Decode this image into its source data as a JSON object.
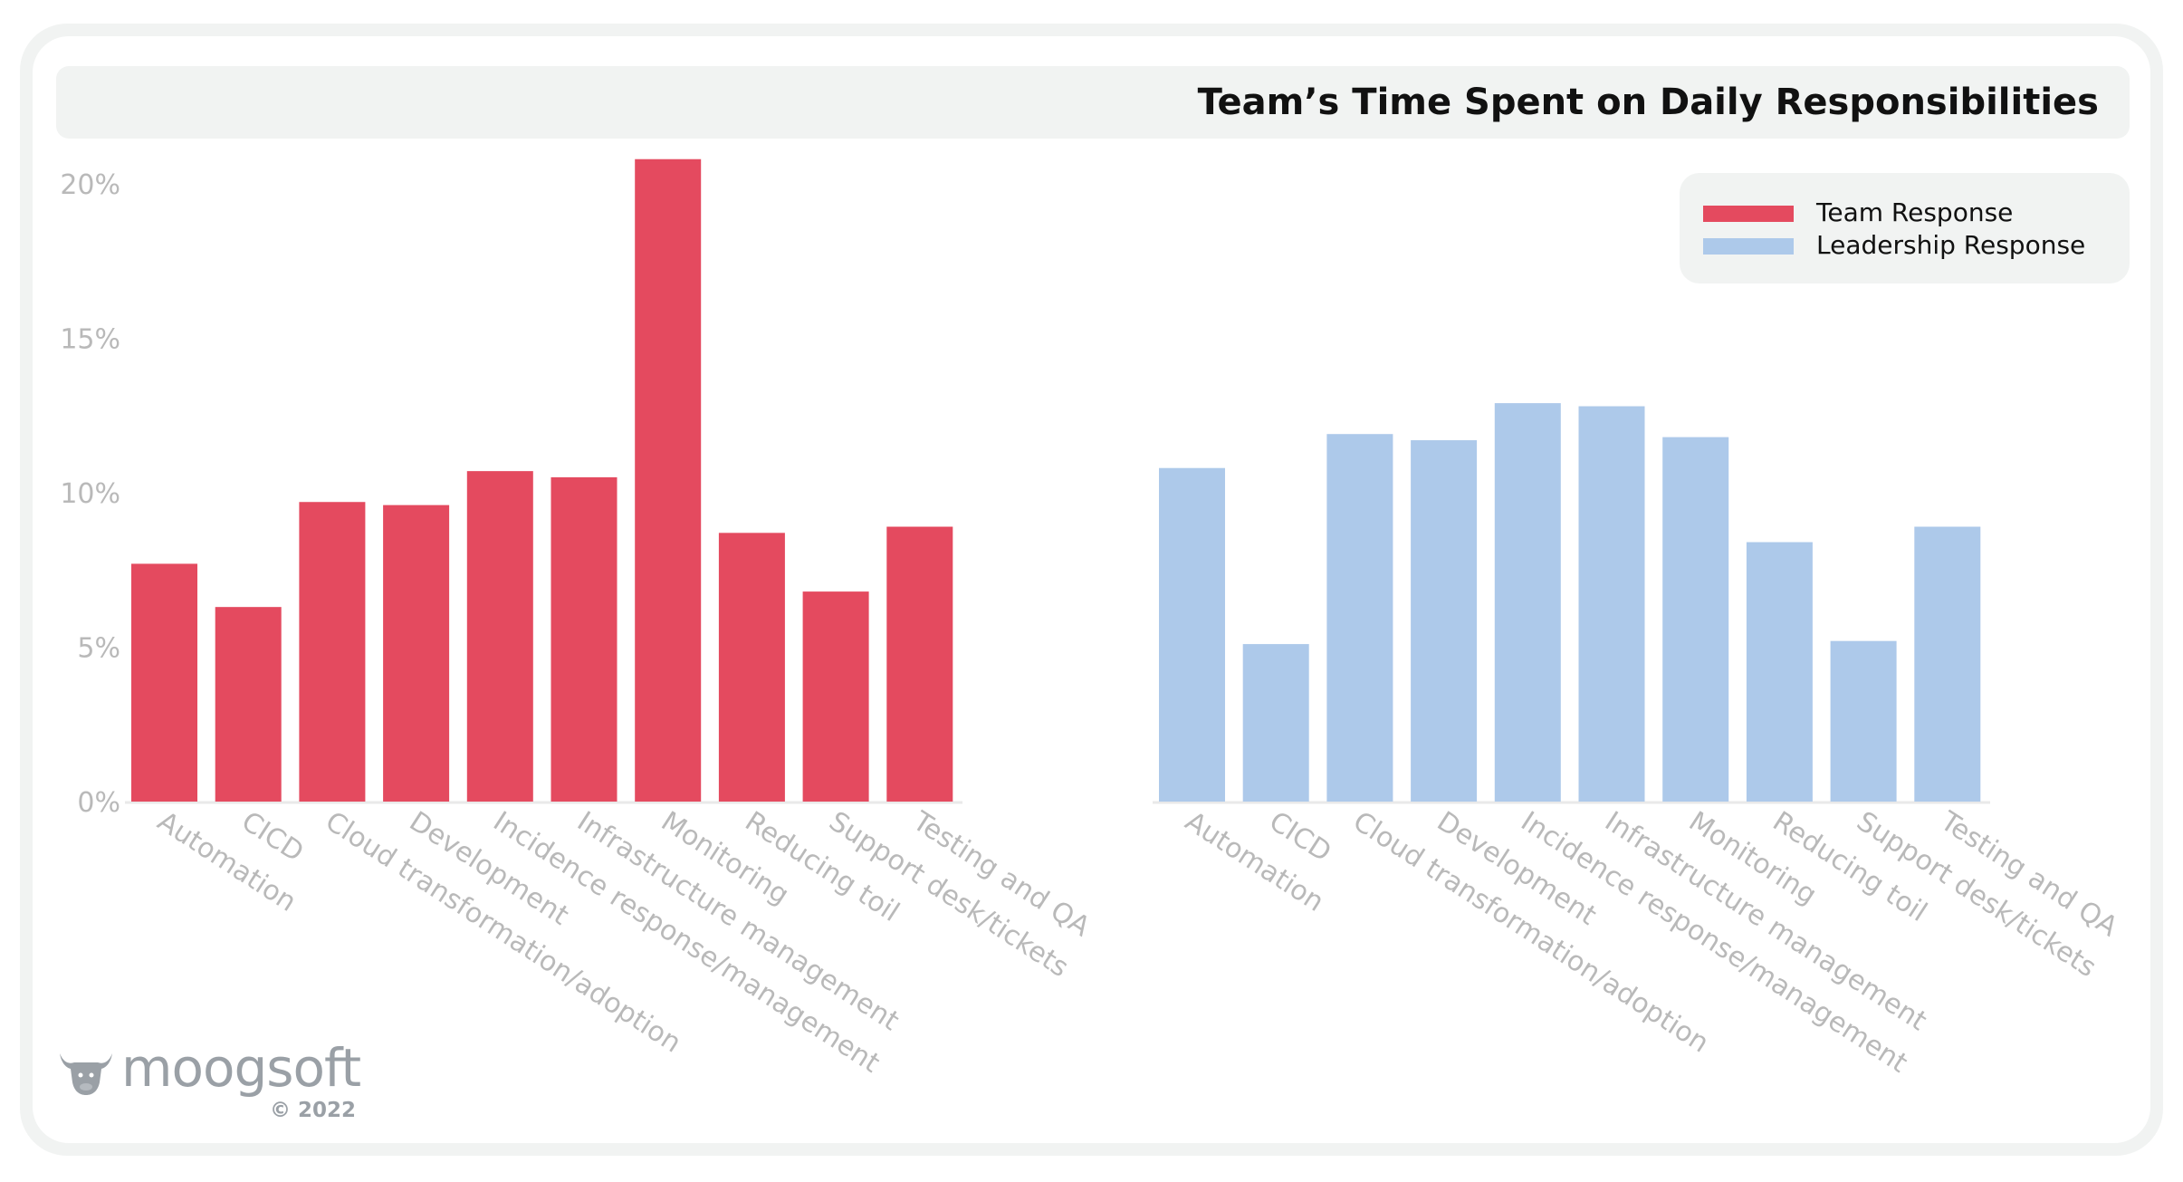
{
  "colors": {
    "team": "#e44a5f",
    "leadership": "#adc9ea",
    "axis_text": "#b9b9b9",
    "baseline": "#e9e9e9"
  },
  "brand": {
    "logo_icon": "bull-head-icon",
    "name": "moogsoft",
    "copyright": "© 2022"
  },
  "chart_data": {
    "type": "bar",
    "title": "Team’s Time Spent on Daily Responsibilities",
    "ylim": [
      0,
      20
    ],
    "yticks": [
      0,
      5,
      10,
      15,
      20
    ],
    "ytick_labels": [
      "0%",
      "5%",
      "10%",
      "15%",
      "20%"
    ],
    "y_unit": "%",
    "grid": false,
    "legend_position": "top-right",
    "categories": [
      "Automation",
      "CICD",
      "Cloud transformation/adoption",
      "Development",
      "Incidence response/management",
      "Infrastructure management",
      "Monitoring",
      "Reducing toil",
      "Support desk/tickets",
      "Testing and QA"
    ],
    "series": [
      {
        "name": "Team Response",
        "values": [
          7.7,
          6.3,
          9.7,
          9.6,
          10.7,
          10.5,
          20.8,
          8.7,
          6.8,
          8.9
        ]
      },
      {
        "name": "Leadership Response",
        "values": [
          10.8,
          5.1,
          11.9,
          11.7,
          12.9,
          12.8,
          11.8,
          8.4,
          5.2,
          8.9
        ]
      }
    ]
  }
}
